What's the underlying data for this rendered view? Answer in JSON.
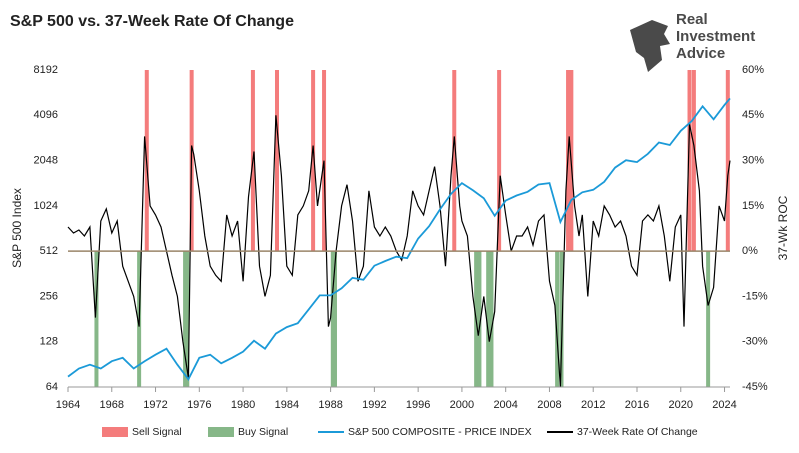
{
  "brand": [
    "Real",
    "Investment",
    "Advice"
  ],
  "chart_data": {
    "type": "line",
    "title": "S&P 500 vs. 37-Week Rate Of Change",
    "ylabel": "S&P 500 Index",
    "y2label": "37-Wk ROC",
    "xlim": [
      1964,
      2024.5
    ],
    "xticks": [
      1964,
      1968,
      1972,
      1976,
      1980,
      1984,
      1988,
      1992,
      1996,
      2000,
      2004,
      2008,
      2012,
      2016,
      2020,
      2024
    ],
    "ylim": [
      64,
      8192
    ],
    "ylog": true,
    "yticks": [
      64,
      128,
      256,
      512,
      1024,
      2048,
      4096,
      8192
    ],
    "y2lim": [
      -45,
      60
    ],
    "y2ticks": [
      {
        "value": -45,
        "label": "-45%"
      },
      {
        "value": -30,
        "label": "-30%"
      },
      {
        "value": -15,
        "label": "-15%"
      },
      {
        "value": 0,
        "label": "0%"
      },
      {
        "value": 15,
        "label": "15%"
      },
      {
        "value": 30,
        "label": "30%"
      },
      {
        "value": 45,
        "label": "45%"
      },
      {
        "value": 60,
        "label": "60%"
      }
    ],
    "reference_line": {
      "axis": "y2",
      "value": 0,
      "color": "#9a8468"
    },
    "series": [
      {
        "name": "Sell Signal",
        "type": "band",
        "span": "upper",
        "color": "#f47c7c",
        "x": [
          1971.2,
          1975.3,
          1980.9,
          1983.1,
          1986.4,
          1987.4,
          1999.3,
          2003.4,
          2009.7,
          2010.0,
          2020.8,
          2021.2,
          2024.3
        ]
      },
      {
        "name": "Buy Signal",
        "type": "band",
        "span": "lower",
        "color": "#86b788",
        "x": [
          1966.6,
          1970.5,
          1974.7,
          1974.9,
          1988.2,
          1988.4,
          2001.3,
          2001.6,
          2002.4,
          2002.7,
          2008.7,
          2009.1,
          2022.5
        ]
      },
      {
        "name": "S&P 500 COMPOSITE - PRICE INDEX",
        "type": "line",
        "axis": "y",
        "color": "#1b9ad8",
        "x": [
          1964,
          1965,
          1966,
          1967,
          1968,
          1969,
          1970,
          1971,
          1972,
          1973,
          1974,
          1975,
          1976,
          1977,
          1978,
          1979,
          1980,
          1981,
          1982,
          1983,
          1984,
          1985,
          1986,
          1987,
          1988,
          1989,
          1990,
          1991,
          1992,
          1993,
          1994,
          1995,
          1996,
          1997,
          1998,
          1999,
          2000,
          2001,
          2002,
          2003,
          2004,
          2005,
          2006,
          2007,
          2008,
          2009,
          2010,
          2011,
          2012,
          2013,
          2014,
          2015,
          2016,
          2017,
          2018,
          2019,
          2020,
          2021,
          2022,
          2023,
          2024,
          2024.5
        ],
        "values": [
          75,
          85,
          90,
          85,
          95,
          100,
          85,
          95,
          105,
          115,
          90,
          72,
          100,
          105,
          92,
          100,
          110,
          130,
          115,
          145,
          160,
          170,
          210,
          260,
          260,
          290,
          340,
          330,
          410,
          440,
          470,
          460,
          620,
          750,
          970,
          1230,
          1450,
          1300,
          1150,
          880,
          1110,
          1200,
          1270,
          1420,
          1450,
          800,
          1120,
          1260,
          1310,
          1480,
          1840,
          2060,
          2000,
          2270,
          2700,
          2600,
          3230,
          3750,
          4700,
          3850,
          4800,
          5300
        ]
      },
      {
        "name": "37-Week Rate Of Change",
        "type": "line",
        "axis": "y2",
        "color": "#000000",
        "x": [
          1964,
          1964.5,
          1965,
          1965.5,
          1966,
          1966.5,
          1967,
          1967.5,
          1968,
          1968.5,
          1969,
          1969.5,
          1970,
          1970.5,
          1971,
          1971.5,
          1972,
          1972.5,
          1973,
          1973.5,
          1974,
          1974.5,
          1975,
          1975.3,
          1975.5,
          1976,
          1976.5,
          1977,
          1977.5,
          1978,
          1978.5,
          1979,
          1979.5,
          1980,
          1980.5,
          1981,
          1981.5,
          1982,
          1982.5,
          1983,
          1983.5,
          1984,
          1984.5,
          1985,
          1985.5,
          1986,
          1986.4,
          1986.8,
          1987.4,
          1987.8,
          1988,
          1988.5,
          1989,
          1989.5,
          1990,
          1990.5,
          1991,
          1991.5,
          1992,
          1992.5,
          1993,
          1993.5,
          1994,
          1994.5,
          1995,
          1995.5,
          1996,
          1996.5,
          1997,
          1997.5,
          1998,
          1998.5,
          1999,
          1999.3,
          1999.8,
          2000,
          2000.5,
          2001,
          2001.5,
          2002,
          2002.5,
          2003,
          2003.5,
          2004,
          2004.5,
          2005,
          2005.5,
          2006,
          2006.5,
          2007,
          2007.5,
          2008,
          2008.5,
          2009,
          2009.5,
          2009.8,
          2010.3,
          2010.7,
          2011,
          2011.5,
          2012,
          2012.5,
          2013,
          2013.5,
          2014,
          2014.5,
          2015,
          2015.5,
          2016,
          2016.5,
          2017,
          2017.5,
          2018,
          2018.5,
          2019,
          2019.5,
          2020,
          2020.3,
          2020.8,
          2021.2,
          2021.7,
          2022,
          2022.5,
          2023,
          2023.5,
          2024,
          2024.3,
          2024.5
        ],
        "values": [
          8,
          6,
          7,
          5,
          8,
          -22,
          10,
          14,
          6,
          10,
          -5,
          -10,
          -15,
          -25,
          38,
          15,
          12,
          8,
          0,
          -8,
          -15,
          -30,
          -42,
          35,
          32,
          20,
          5,
          -5,
          -8,
          -10,
          12,
          5,
          10,
          -10,
          18,
          33,
          -5,
          -15,
          -8,
          45,
          25,
          -5,
          -8,
          12,
          15,
          20,
          35,
          15,
          30,
          -25,
          -22,
          0,
          15,
          22,
          10,
          -10,
          -5,
          20,
          8,
          5,
          8,
          5,
          0,
          -3,
          5,
          20,
          15,
          12,
          20,
          28,
          15,
          -5,
          25,
          38,
          15,
          10,
          5,
          -15,
          -28,
          -15,
          -30,
          -20,
          25,
          12,
          0,
          5,
          5,
          8,
          2,
          10,
          12,
          -10,
          -18,
          -45,
          20,
          38,
          15,
          5,
          12,
          -15,
          10,
          5,
          15,
          12,
          8,
          10,
          5,
          -5,
          -8,
          10,
          12,
          10,
          15,
          5,
          -10,
          8,
          12,
          -25,
          42,
          35,
          20,
          -5,
          -18,
          -12,
          15,
          10,
          25,
          30
        ]
      }
    ]
  }
}
